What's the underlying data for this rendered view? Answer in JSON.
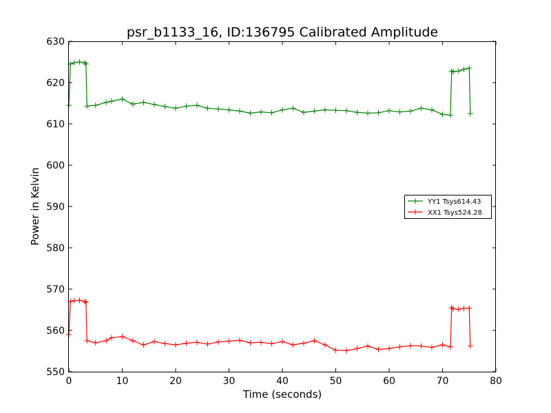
{
  "chart_data": {
    "type": "line",
    "title": "psr_b1133_16, ID:136795 Calibrated Amplitude",
    "xlabel": "Time (seconds)",
    "ylabel": "Power in Kelvin",
    "xlim": [
      0,
      80
    ],
    "ylim": [
      550,
      630
    ],
    "xticks": [
      "0",
      "10",
      "20",
      "30",
      "40",
      "50",
      "60",
      "70",
      "80"
    ],
    "yticks": [
      "550",
      "560",
      "570",
      "580",
      "590",
      "600",
      "610",
      "620",
      "630"
    ],
    "grid": false,
    "legend_position": "right",
    "marker": "plus",
    "series": [
      {
        "name": "YY1 Tsys614.43",
        "color": "#008000",
        "x": [
          0,
          0.3,
          1,
          2,
          3,
          3.2,
          3.4,
          5,
          7,
          8,
          10,
          12,
          14,
          16,
          18,
          20,
          22,
          24,
          26,
          28,
          30,
          32,
          34,
          36,
          38,
          40,
          42,
          44,
          46,
          48,
          50,
          52,
          54,
          56,
          58,
          60,
          62,
          64,
          66,
          68,
          70,
          71.5,
          71.7,
          72,
          73,
          74,
          75,
          75.2
        ],
        "y": [
          614.5,
          624.5,
          624.8,
          625,
          624.8,
          624.5,
          614.3,
          614.5,
          615.2,
          615.5,
          616,
          614.8,
          615.2,
          614.7,
          614.2,
          613.8,
          614.3,
          614.5,
          613.8,
          613.6,
          613.4,
          613.1,
          612.6,
          612.9,
          612.7,
          613.4,
          613.8,
          612.8,
          613.1,
          613.4,
          613.3,
          613.2,
          612.8,
          612.6,
          612.7,
          613.2,
          612.9,
          613.1,
          613.8,
          613.4,
          612.3,
          612.1,
          622.8,
          622.6,
          622.8,
          623.2,
          623.5,
          612.5
        ]
      },
      {
        "name": "XX1 Tsys524.28",
        "color": "#ff0000",
        "x": [
          0,
          0.3,
          1,
          2,
          3,
          3.2,
          3.4,
          5,
          7,
          8,
          10,
          12,
          14,
          16,
          18,
          20,
          22,
          24,
          26,
          28,
          30,
          32,
          34,
          36,
          38,
          40,
          42,
          44,
          46,
          48,
          50,
          52,
          54,
          56,
          58,
          60,
          62,
          64,
          66,
          68,
          70,
          71.5,
          71.7,
          72,
          73,
          74,
          75,
          75.2
        ],
        "y": [
          559,
          567,
          567.2,
          567.3,
          567,
          566.8,
          557.5,
          557,
          557.5,
          558.2,
          558.5,
          557.5,
          556.5,
          557.3,
          556.8,
          556.5,
          556.9,
          557.1,
          556.7,
          557.2,
          557.4,
          557.6,
          557,
          557.1,
          556.8,
          557.3,
          556.5,
          556.9,
          557.5,
          556.5,
          555.2,
          555.1,
          555.6,
          556.2,
          555.4,
          555.6,
          556,
          556.3,
          556.2,
          555.9,
          556.5,
          556,
          565.5,
          565.2,
          565.1,
          565.3,
          565.4,
          556.2
        ]
      }
    ]
  }
}
